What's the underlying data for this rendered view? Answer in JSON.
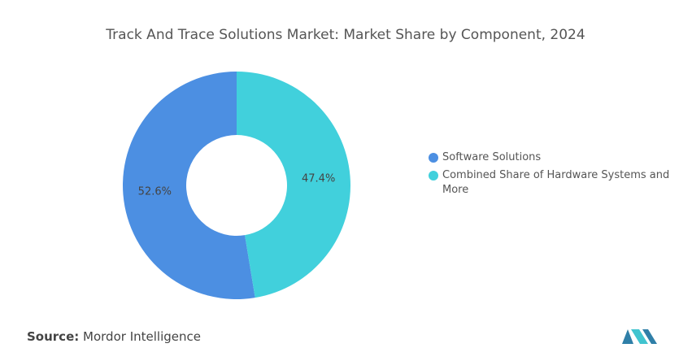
{
  "chart_data": {
    "type": "donut",
    "title": "Track And Trace Solutions Market: Market Share by Component, 2024",
    "categories": [
      "Software Solutions",
      "Combined Share of Hardware Systems and More"
    ],
    "values": [
      52.6,
      47.4
    ],
    "value_labels": [
      "52.6%",
      "47.4%"
    ],
    "colors": [
      "#4c8fe2",
      "#41d0dc"
    ],
    "legend": "right"
  },
  "footer": {
    "source_label": "Source:",
    "source": "Mordor Intelligence"
  }
}
